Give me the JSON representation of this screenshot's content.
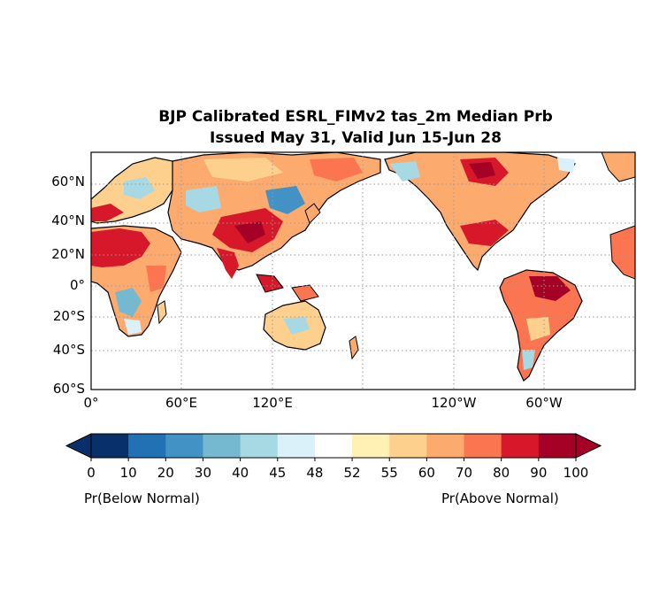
{
  "title": {
    "line1": "BJP Calibrated ESRL_FIMv2 tas_2m Median Prb",
    "line2": "Issued May 31, Valid Jun 15-Jun 28"
  },
  "map": {
    "projection": "equirectangular",
    "central_longitude": 180,
    "lat_range": [
      -60,
      77
    ],
    "gridlines": "dotted",
    "lat_labels": [
      "60°N",
      "40°N",
      "20°N",
      "0°",
      "20°S",
      "40°S",
      "60°S"
    ],
    "lon_labels": [
      "0°",
      "60°E",
      "120°E",
      "120°W",
      "60°W"
    ]
  },
  "colorbar": {
    "ticks": [
      "0",
      "10",
      "20",
      "30",
      "40",
      "45",
      "48",
      "52",
      "55",
      "60",
      "70",
      "80",
      "90",
      "100"
    ],
    "colors": [
      "#08306b",
      "#2171b5",
      "#4292c6",
      "#74b9d0",
      "#a6d9e3",
      "#daf1fa",
      "#ffffff",
      "#fff0b4",
      "#fdd08e",
      "#fcaa6e",
      "#fb7550",
      "#d7182a",
      "#a50026"
    ],
    "low_label": "Pr(Below Normal)",
    "high_label": "Pr(Above Normal)"
  }
}
